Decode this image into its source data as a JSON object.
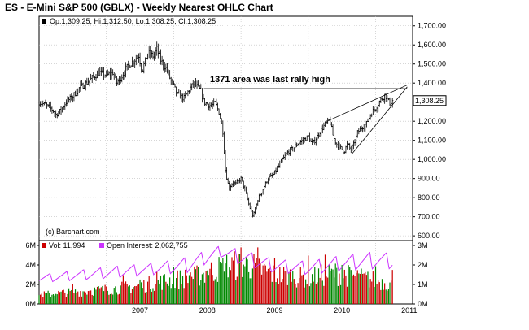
{
  "title": "ES - E-Mini S&P 500 (GBLX) - Weekly Nearest OHLC Chart",
  "colors": {
    "price_bars": "#000000",
    "volume_up": "#cc0000",
    "volume_down": "#008800",
    "open_interest": "#cc33ff",
    "last_price_box": "#ffffff"
  },
  "chart_data": [
    {
      "type": "ohlc",
      "legend": "Op:1,309.25, Hi:1,312.50, Lo:1,308.25, Cl:1,308.25",
      "watermark": "(c) Barchart.com",
      "annotation": "1371 area was last rally high",
      "last_price_label": "1,308.25",
      "resistance_level": 1371,
      "y_ticks": [
        "600.00",
        "700.00",
        "800.00",
        "900.00",
        "1,000.00",
        "1,100.00",
        "1,200.00",
        "1,300.00",
        "1,400.00",
        "1,500.00",
        "1,600.00",
        "1,700.00"
      ],
      "ylim": [
        575,
        1750
      ],
      "x_ticks": [
        "2007",
        "2008",
        "2009",
        "2010",
        "2011"
      ],
      "xlim": [
        2006.0,
        2011.55
      ],
      "grid": true,
      "price_path": [
        [
          2006.0,
          1300
        ],
        [
          2006.1,
          1285
        ],
        [
          2006.2,
          1260
        ],
        [
          2006.25,
          1235
        ],
        [
          2006.32,
          1255
        ],
        [
          2006.4,
          1300
        ],
        [
          2006.5,
          1330
        ],
        [
          2006.6,
          1375
        ],
        [
          2006.7,
          1400
        ],
        [
          2006.8,
          1430
        ],
        [
          2006.9,
          1455
        ],
        [
          2007.0,
          1440
        ],
        [
          2007.1,
          1455
        ],
        [
          2007.15,
          1400
        ],
        [
          2007.22,
          1430
        ],
        [
          2007.3,
          1480
        ],
        [
          2007.4,
          1515
        ],
        [
          2007.48,
          1545
        ],
        [
          2007.53,
          1465
        ],
        [
          2007.58,
          1520
        ],
        [
          2007.62,
          1560
        ],
        [
          2007.7,
          1540
        ],
        [
          2007.75,
          1580
        ],
        [
          2007.8,
          1525
        ],
        [
          2007.85,
          1495
        ],
        [
          2007.9,
          1470
        ],
        [
          2007.95,
          1420
        ],
        [
          2008.0,
          1385
        ],
        [
          2008.05,
          1340
        ],
        [
          2008.15,
          1320
        ],
        [
          2008.25,
          1375
        ],
        [
          2008.3,
          1400
        ],
        [
          2008.4,
          1360
        ],
        [
          2008.45,
          1300
        ],
        [
          2008.55,
          1280
        ],
        [
          2008.62,
          1295
        ],
        [
          2008.68,
          1240
        ],
        [
          2008.73,
          1150
        ],
        [
          2008.77,
          940
        ],
        [
          2008.82,
          850
        ],
        [
          2008.88,
          880
        ],
        [
          2008.92,
          870
        ],
        [
          2009.0,
          900
        ],
        [
          2009.05,
          850
        ],
        [
          2009.12,
          760
        ],
        [
          2009.18,
          700
        ],
        [
          2009.25,
          790
        ],
        [
          2009.32,
          840
        ],
        [
          2009.4,
          900
        ],
        [
          2009.48,
          920
        ],
        [
          2009.55,
          960
        ],
        [
          2009.62,
          1000
        ],
        [
          2009.7,
          1040
        ],
        [
          2009.78,
          1060
        ],
        [
          2009.85,
          1085
        ],
        [
          2009.92,
          1100
        ],
        [
          2010.0,
          1120
        ],
        [
          2010.05,
          1080
        ],
        [
          2010.1,
          1100
        ],
        [
          2010.18,
          1150
        ],
        [
          2010.25,
          1185
        ],
        [
          2010.32,
          1205
        ],
        [
          2010.37,
          1120
        ],
        [
          2010.42,
          1080
        ],
        [
          2010.48,
          1060
        ],
        [
          2010.53,
          1040
        ],
        [
          2010.58,
          1080
        ],
        [
          2010.63,
          1050
        ],
        [
          2010.68,
          1080
        ],
        [
          2010.73,
          1140
        ],
        [
          2010.8,
          1170
        ],
        [
          2010.87,
          1190
        ],
        [
          2010.93,
          1240
        ],
        [
          2011.0,
          1270
        ],
        [
          2011.05,
          1300
        ],
        [
          2011.1,
          1320
        ],
        [
          2011.14,
          1340
        ],
        [
          2011.18,
          1310
        ],
        [
          2011.21,
          1295
        ],
        [
          2011.25,
          1308.25
        ]
      ],
      "trendlines": [
        {
          "from": [
            2010.28,
            1200
          ],
          "to": [
            2011.47,
            1390
          ]
        },
        {
          "from": [
            2010.65,
            1030
          ],
          "to": [
            2011.47,
            1380
          ]
        }
      ]
    },
    {
      "type": "bar+line",
      "legend_volume": "Vol: 11,994",
      "legend_oi": "Open Interest: 2,062,755",
      "left_ticks": [
        "0M",
        "2M",
        "4M",
        "6M"
      ],
      "left_lim": [
        0,
        6
      ],
      "right_ticks": [
        "0M",
        "1M",
        "2M",
        "3M"
      ],
      "right_lim": [
        0,
        3
      ],
      "volume_trend": [
        [
          2006.0,
          1.0
        ],
        [
          2007.0,
          1.6
        ],
        [
          2007.5,
          2.0
        ],
        [
          2007.9,
          2.6
        ],
        [
          2008.3,
          3.0
        ],
        [
          2008.8,
          4.2
        ],
        [
          2009.1,
          4.4
        ],
        [
          2009.5,
          3.2
        ],
        [
          2010.0,
          2.9
        ],
        [
          2010.4,
          3.4
        ],
        [
          2010.7,
          3.0
        ],
        [
          2011.0,
          2.6
        ],
        [
          2011.25,
          2.2
        ]
      ],
      "oi_cycle_low": [
        [
          2006.0,
          1.1
        ],
        [
          2007.0,
          1.3
        ],
        [
          2007.7,
          1.5
        ],
        [
          2008.2,
          1.6
        ],
        [
          2008.7,
          2.4
        ],
        [
          2009.0,
          2.0
        ],
        [
          2009.5,
          1.6
        ],
        [
          2010.0,
          1.5
        ],
        [
          2010.5,
          1.7
        ],
        [
          2011.0,
          1.8
        ],
        [
          2011.25,
          1.8
        ]
      ],
      "oi_cycle_high": [
        [
          2006.0,
          1.5
        ],
        [
          2007.0,
          1.9
        ],
        [
          2007.7,
          2.1
        ],
        [
          2008.2,
          2.4
        ],
        [
          2008.7,
          3.0
        ],
        [
          2009.0,
          2.8
        ],
        [
          2009.5,
          2.3
        ],
        [
          2010.0,
          2.2
        ],
        [
          2010.5,
          2.5
        ],
        [
          2011.0,
          2.7
        ],
        [
          2011.25,
          2.6
        ]
      ]
    }
  ]
}
